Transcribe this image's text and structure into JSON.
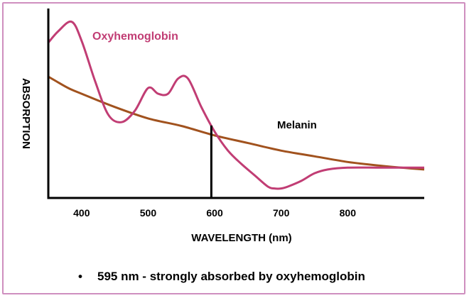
{
  "chart_data": {
    "type": "line",
    "title": "",
    "xlabel": "WAVELENGTH (nm)",
    "ylabel": "ABSORPTION",
    "xlim": [
      350,
      915
    ],
    "ylim": [
      0,
      1
    ],
    "x_ticks": [
      400,
      500,
      600,
      700,
      800
    ],
    "marker_wavelength": 595,
    "series": [
      {
        "name": "Oxyhemoglobin",
        "color": "#c13d74",
        "x": [
          350,
          365,
          385,
          400,
          420,
          440,
          460,
          480,
          500,
          515,
          530,
          545,
          560,
          580,
          600,
          620,
          640,
          660,
          680,
          690,
          700,
          710,
          730,
          750,
          770,
          800,
          850,
          915
        ],
        "y": [
          0.82,
          0.88,
          0.93,
          0.83,
          0.62,
          0.44,
          0.4,
          0.46,
          0.58,
          0.55,
          0.55,
          0.63,
          0.63,
          0.48,
          0.35,
          0.25,
          0.18,
          0.12,
          0.06,
          0.05,
          0.05,
          0.06,
          0.09,
          0.13,
          0.15,
          0.16,
          0.16,
          0.16
        ]
      },
      {
        "name": "Melanin",
        "color": "#a1521e",
        "x": [
          350,
          360,
          380,
          400,
          450,
          500,
          550,
          600,
          650,
          700,
          750,
          800,
          850,
          915
        ],
        "y": [
          0.64,
          0.62,
          0.58,
          0.55,
          0.48,
          0.42,
          0.38,
          0.33,
          0.29,
          0.25,
          0.22,
          0.19,
          0.17,
          0.15
        ]
      }
    ]
  },
  "bullet": {
    "symbol": "•",
    "text": "595 nm - strongly absorbed by oxyhemoglobin"
  }
}
